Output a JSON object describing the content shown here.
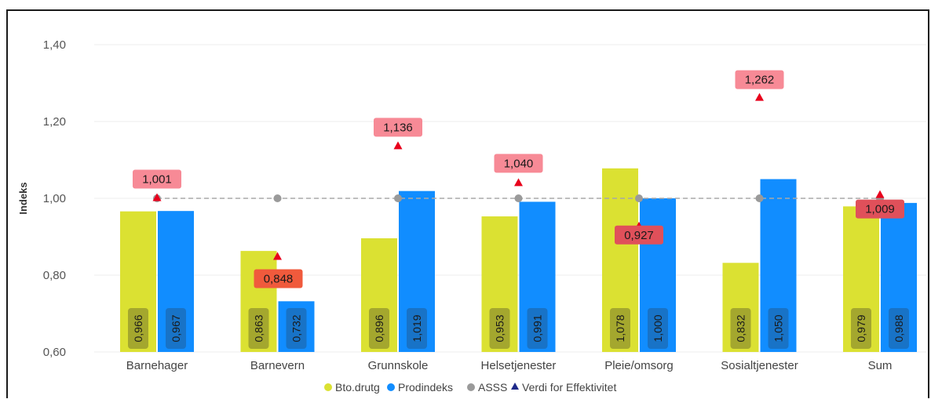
{
  "chart_data": {
    "type": "bar",
    "title": "",
    "ylabel": "Indeks",
    "xlabel": "",
    "ylim": [
      0.6,
      1.4
    ],
    "yticks": [
      "0,60",
      "0,80",
      "1,00",
      "1,20",
      "1,40"
    ],
    "categories": [
      "Barnehager",
      "Barnevern",
      "Grunnskole",
      "Helsetjenester",
      "Pleie/omsorg",
      "Sosialtjenester",
      "Sum"
    ],
    "series": [
      {
        "name": "Bto.drutg",
        "kind": "bar",
        "color": "#dbe132",
        "values": [
          0.966,
          0.863,
          0.896,
          0.953,
          1.078,
          0.832,
          0.979
        ],
        "labels": [
          "0,966",
          "0,863",
          "0,896",
          "0,953",
          "1,078",
          "0,832",
          "0,979"
        ]
      },
      {
        "name": "Prodindeks",
        "kind": "bar",
        "color": "#118dff",
        "values": [
          0.967,
          0.732,
          1.019,
          0.991,
          1.0,
          1.05,
          0.988
        ],
        "labels": [
          "0,967",
          "0,732",
          "1,019",
          "0,991",
          "1,000",
          "1,050",
          "0,988"
        ]
      },
      {
        "name": "ASSS",
        "kind": "line",
        "color": "#9a9a9a",
        "values": [
          1.0,
          1.0,
          1.0,
          1.0,
          1.0,
          1.0,
          1.0
        ]
      },
      {
        "name": "Verdi for Effektivitet",
        "kind": "marker",
        "color": "#e8001c",
        "legend_color": "#1f2a8a",
        "values": [
          1.001,
          0.848,
          1.136,
          1.04,
          0.927,
          1.262,
          1.009
        ],
        "labels": [
          "1,001",
          "0,848",
          "1,136",
          "1,040",
          "0,927",
          "1,262",
          "1,009"
        ],
        "label_colors": [
          "#f78a96",
          "#f05a3c",
          "#f78a96",
          "#f78a96",
          "#e0505a",
          "#f78a96",
          "#e0505a"
        ]
      }
    ],
    "grid": true,
    "legend_position": "bottom"
  }
}
